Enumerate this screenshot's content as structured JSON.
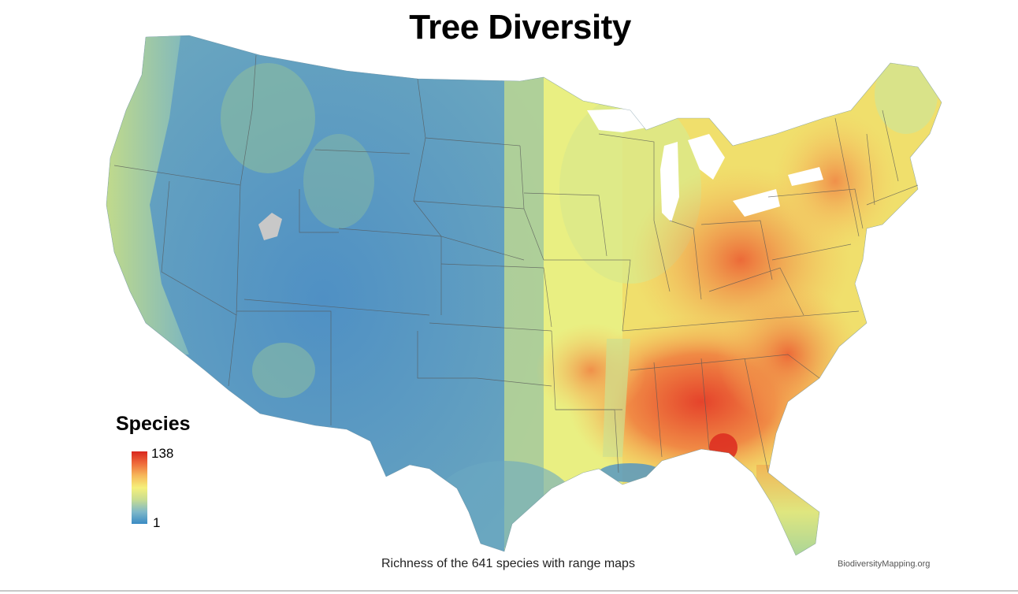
{
  "map": {
    "title": "Tree Diversity",
    "caption": "Richness of the 641 species with range maps",
    "credit": "BiodiversityMapping.org",
    "legend": {
      "title": "Species",
      "max": "138",
      "min": "1",
      "gradient": [
        "#3a8ac4",
        "#7fb8c8",
        "#c7dc92",
        "#f5f07a",
        "#f6b85a",
        "#ee6b3b",
        "#d9261e"
      ]
    },
    "colors": {
      "low": "#4a90c8",
      "mid": "#e9ef82",
      "high": "#e9442c",
      "water": "#ffffff",
      "lake": "#c8c8c8",
      "border": "#555555"
    }
  }
}
